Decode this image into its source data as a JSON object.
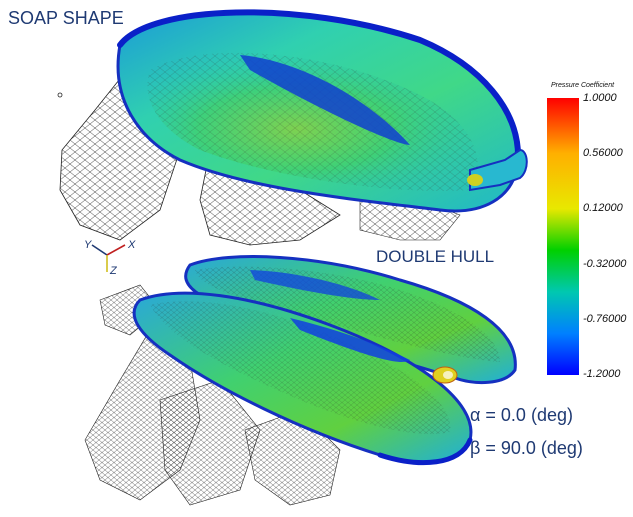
{
  "labels": {
    "top_model": "SOAP SHAPE",
    "bottom_model": "DOUBLE HULL"
  },
  "axes_triad": {
    "x": "X",
    "y": "Y",
    "z": "Z"
  },
  "colorbar": {
    "title": "Pressure Coefficient",
    "ticks": [
      "1.0000",
      "0.56000",
      "0.12000",
      "-0.32000",
      "-0.76000",
      "-1.2000"
    ],
    "max": 1.0,
    "min": -1.2,
    "colors": [
      "#ff0000",
      "#ffb000",
      "#e8e800",
      "#00d000",
      "#00c8b0",
      "#0080ff",
      "#0000ff"
    ]
  },
  "conditions": {
    "alpha": "α = 0.0 (deg)",
    "beta": "β = 90.0 (deg)"
  }
}
